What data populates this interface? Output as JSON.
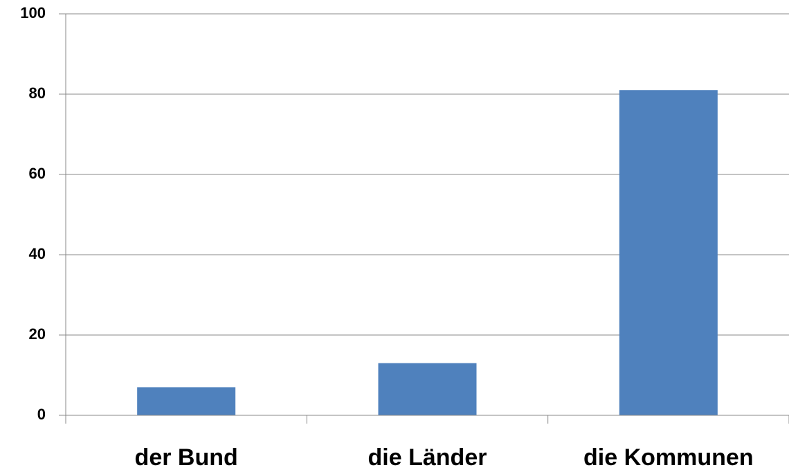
{
  "chart_data": {
    "type": "bar",
    "categories": [
      "der Bund",
      "die Länder",
      "die Kommunen"
    ],
    "values": [
      7,
      13,
      81
    ],
    "color": "#4f81bd",
    "ylim": [
      0,
      100
    ],
    "yticks": [
      0,
      20,
      40,
      60,
      80,
      100
    ],
    "grid": true
  }
}
